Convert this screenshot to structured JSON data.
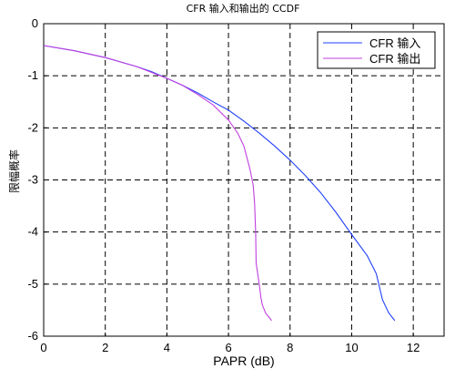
{
  "chart_data": {
    "type": "line",
    "title": "CFR 输入和输出的 CCDF",
    "xlabel": "PAPR (dB)",
    "ylabel": "限幅概率",
    "xlim": [
      0,
      13
    ],
    "ylim": [
      -6,
      0
    ],
    "xticks": [
      "0",
      "2",
      "4",
      "6",
      "8",
      "10",
      "12"
    ],
    "yticks": [
      "0",
      "-1",
      "-2",
      "-3",
      "-4",
      "-5",
      "-6"
    ],
    "grid": true,
    "legend_position": "top-right",
    "series": [
      {
        "name": "CFR 输入",
        "color": "#2040ff",
        "x": [
          0,
          1,
          2,
          3,
          3.5,
          4,
          4.5,
          5,
          5.5,
          6,
          6.5,
          7,
          7.5,
          8,
          8.5,
          9,
          9.5,
          10,
          10.5,
          10.8,
          11,
          11.2,
          11.4
        ],
        "y": [
          -0.42,
          -0.52,
          -0.65,
          -0.82,
          -0.92,
          -1.05,
          -1.18,
          -1.33,
          -1.5,
          -1.66,
          -1.87,
          -2.1,
          -2.35,
          -2.62,
          -2.92,
          -3.25,
          -3.63,
          -4.05,
          -4.45,
          -4.8,
          -5.3,
          -5.55,
          -5.7
        ]
      },
      {
        "name": "CFR 输出",
        "color": "#c040e0",
        "x": [
          0,
          1,
          2,
          3,
          4,
          4.5,
          5,
          5.5,
          6,
          6.3,
          6.5,
          6.7,
          6.8,
          6.85,
          6.88,
          6.9,
          7.0,
          7.05,
          7.1,
          7.2,
          7.4
        ],
        "y": [
          -0.42,
          -0.52,
          -0.65,
          -0.82,
          -1.05,
          -1.18,
          -1.36,
          -1.56,
          -1.85,
          -2.1,
          -2.35,
          -2.8,
          -3.1,
          -3.45,
          -4.0,
          -4.6,
          -5.0,
          -5.25,
          -5.4,
          -5.55,
          -5.7
        ]
      }
    ]
  }
}
